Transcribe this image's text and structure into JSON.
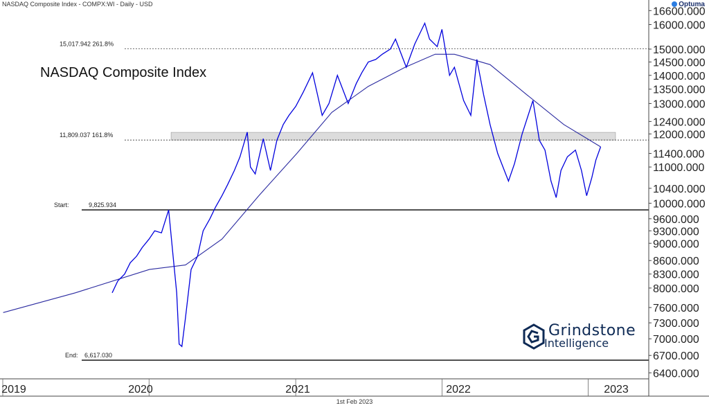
{
  "header": {
    "title": "NASDAQ Composite Index - COMPX:WI - Daily - USD",
    "brand": "Optuma"
  },
  "footer": {
    "date": "1st Feb 2023"
  },
  "logo": {
    "line1": "Grindstone",
    "line2": "Intelligence",
    "icon": "hexagon-g-icon"
  },
  "colors": {
    "price": "#0000dd",
    "ma": "#2a2aa0",
    "levels": "#000000",
    "band": "#dcdcdc"
  },
  "chart_data": {
    "type": "line",
    "title": "NASDAQ Composite Index",
    "xlabel": "",
    "ylabel": "",
    "scale": "log",
    "ylim": [
      6300,
      16700
    ],
    "x_ticks": [
      "2019",
      "2020",
      "2021",
      "2022",
      "2023"
    ],
    "y_ticks": [
      "16600.000",
      "16000.000",
      "15000.000",
      "14500.000",
      "14000.000",
      "13500.000",
      "13000.000",
      "12400.000",
      "12000.000",
      "11400.000",
      "11000.000",
      "10400.000",
      "10000.000",
      "9600.000",
      "9300.000",
      "9000.000",
      "8600.000",
      "8300.000",
      "8000.000",
      "7600.000",
      "7300.000",
      "7000.000",
      "6700.000",
      "6400.000"
    ],
    "series": [
      {
        "values": [
          [
            "2019-10-01",
            7900
          ],
          [
            "2019-10-15",
            8150
          ],
          [
            "2019-11-01",
            8300
          ],
          [
            "2019-11-15",
            8550
          ],
          [
            "2019-12-01",
            8700
          ],
          [
            "2019-12-15",
            8900
          ],
          [
            "2020-01-01",
            9100
          ],
          [
            "2020-01-15",
            9300
          ],
          [
            "2020-02-01",
            9250
          ],
          [
            "2020-02-19",
            9826
          ],
          [
            "2020-03-01",
            8700
          ],
          [
            "2020-03-10",
            7900
          ],
          [
            "2020-03-16",
            6904
          ],
          [
            "2020-03-23",
            6860
          ],
          [
            "2020-04-01",
            7400
          ],
          [
            "2020-04-15",
            8400
          ],
          [
            "2020-05-01",
            8700
          ],
          [
            "2020-05-15",
            9300
          ],
          [
            "2020-06-01",
            9600
          ],
          [
            "2020-06-15",
            9900
          ],
          [
            "2020-07-01",
            10200
          ],
          [
            "2020-07-15",
            10500
          ],
          [
            "2020-08-01",
            10900
          ],
          [
            "2020-08-15",
            11300
          ],
          [
            "2020-09-02",
            12056
          ],
          [
            "2020-09-10",
            11000
          ],
          [
            "2020-09-22",
            10800
          ],
          [
            "2020-10-12",
            11850
          ],
          [
            "2020-10-30",
            10900
          ],
          [
            "2020-11-15",
            11800
          ],
          [
            "2020-12-01",
            12300
          ],
          [
            "2020-12-15",
            12600
          ],
          [
            "2021-01-01",
            12900
          ],
          [
            "2021-01-20",
            13400
          ],
          [
            "2021-02-12",
            14095
          ],
          [
            "2021-03-08",
            12600
          ],
          [
            "2021-03-25",
            13000
          ],
          [
            "2021-04-15",
            14000
          ],
          [
            "2021-05-12",
            13000
          ],
          [
            "2021-06-01",
            13700
          ],
          [
            "2021-06-15",
            14100
          ],
          [
            "2021-07-01",
            14500
          ],
          [
            "2021-07-20",
            14600
          ],
          [
            "2021-08-05",
            14800
          ],
          [
            "2021-08-25",
            15000
          ],
          [
            "2021-09-07",
            15400
          ],
          [
            "2021-10-04",
            14300
          ],
          [
            "2021-10-25",
            15200
          ],
          [
            "2021-11-19",
            16057
          ],
          [
            "2021-12-01",
            15400
          ],
          [
            "2021-12-20",
            15100
          ],
          [
            "2022-01-01",
            15800
          ],
          [
            "2022-01-20",
            14000
          ],
          [
            "2022-02-01",
            14300
          ],
          [
            "2022-02-24",
            13100
          ],
          [
            "2022-03-14",
            12600
          ],
          [
            "2022-03-29",
            14600
          ],
          [
            "2022-04-15",
            13300
          ],
          [
            "2022-05-01",
            12300
          ],
          [
            "2022-05-20",
            11400
          ],
          [
            "2022-06-16",
            10600
          ],
          [
            "2022-07-01",
            11100
          ],
          [
            "2022-07-20",
            12000
          ],
          [
            "2022-08-16",
            13100
          ],
          [
            "2022-09-01",
            11800
          ],
          [
            "2022-09-15",
            11500
          ],
          [
            "2022-09-30",
            10600
          ],
          [
            "2022-10-13",
            10150
          ],
          [
            "2022-10-25",
            10900
          ],
          [
            "2022-11-10",
            11300
          ],
          [
            "2022-11-30",
            11500
          ],
          [
            "2022-12-15",
            10900
          ],
          [
            "2022-12-28",
            10200
          ],
          [
            "2023-01-10",
            10700
          ],
          [
            "2023-01-20",
            11200
          ],
          [
            "2023-02-01",
            11600
          ]
        ]
      },
      {
        "values": [
          [
            "2019-01-02",
            7500
          ],
          [
            "2019-07-01",
            7900
          ],
          [
            "2020-01-02",
            8400
          ],
          [
            "2020-04-01",
            8500
          ],
          [
            "2020-07-01",
            9100
          ],
          [
            "2020-10-01",
            10200
          ],
          [
            "2021-01-04",
            11400
          ],
          [
            "2021-04-01",
            12700
          ],
          [
            "2021-07-01",
            13600
          ],
          [
            "2021-10-01",
            14300
          ],
          [
            "2021-12-15",
            14800
          ],
          [
            "2022-02-01",
            14800
          ],
          [
            "2022-05-01",
            14400
          ],
          [
            "2022-08-01",
            13300
          ],
          [
            "2022-11-01",
            12300
          ],
          [
            "2023-02-01",
            11600
          ]
        ]
      }
    ],
    "annotations": {
      "fib_2618": {
        "label": "15,017.942   261.8%",
        "value": 15017.942
      },
      "fib_1618": {
        "label": "11,809.037   161.8%",
        "value": 11809.037
      },
      "start": {
        "label": "Start:",
        "value_label": "9,825.934",
        "value": 9825.934
      },
      "end": {
        "label": "End:",
        "value_label": "6,617.030",
        "value": 6617.03
      },
      "band": {
        "low": 11809,
        "high": 12050
      }
    }
  }
}
